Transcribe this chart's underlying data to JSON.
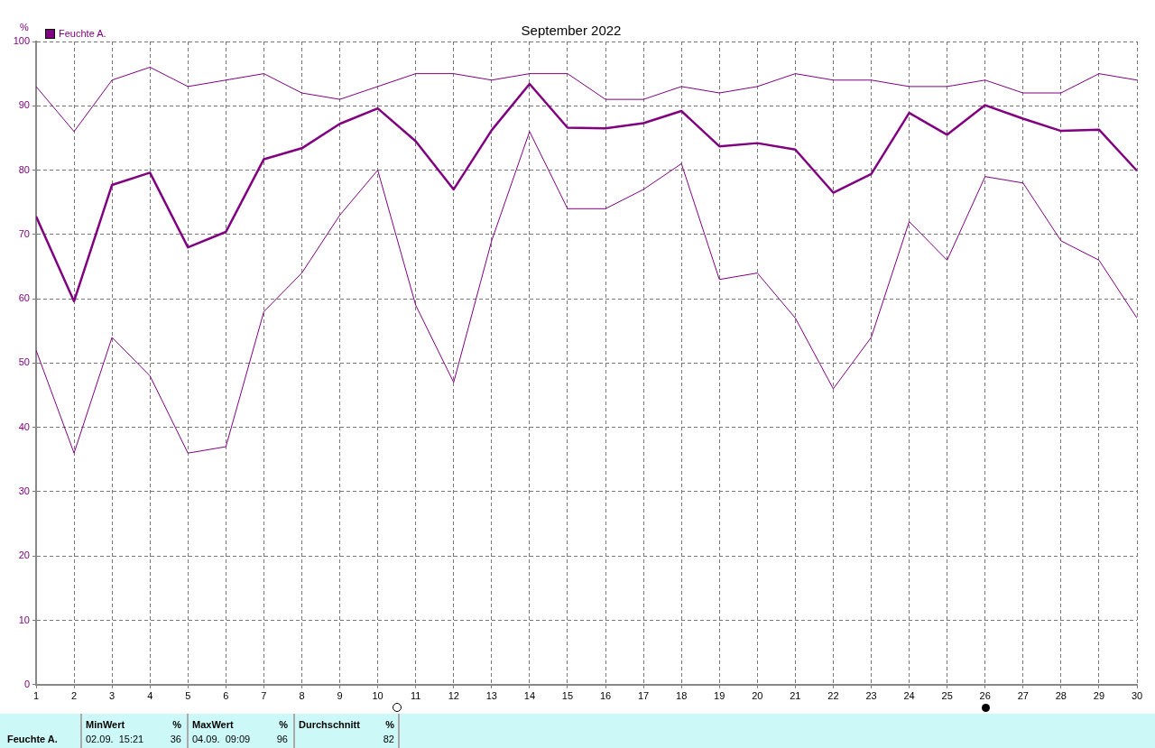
{
  "chart_data": {
    "type": "line",
    "title": "September 2022",
    "ylabel": "%",
    "x": [
      1,
      2,
      3,
      4,
      5,
      6,
      7,
      8,
      9,
      10,
      11,
      12,
      13,
      14,
      15,
      16,
      17,
      18,
      19,
      20,
      21,
      22,
      23,
      24,
      25,
      26,
      27,
      28,
      29,
      30
    ],
    "xlim": [
      1,
      30
    ],
    "xticks": [
      1,
      2,
      3,
      4,
      5,
      6,
      7,
      8,
      9,
      10,
      11,
      12,
      13,
      14,
      15,
      16,
      17,
      18,
      19,
      20,
      21,
      22,
      23,
      24,
      25,
      26,
      27,
      28,
      29,
      30
    ],
    "ylim": [
      0,
      100
    ],
    "yticks": [
      0,
      10,
      20,
      30,
      40,
      50,
      60,
      70,
      80,
      90,
      100
    ],
    "grid": true,
    "legend": "top left",
    "marker": "none",
    "line_style": "solid",
    "series": [
      {
        "color": "#800080",
        "values": [
          93,
          86,
          94,
          96,
          93,
          94,
          95,
          92,
          91,
          93,
          95,
          95,
          94,
          95,
          95,
          91,
          91,
          93,
          92,
          93,
          95,
          94,
          94,
          93,
          93,
          94,
          92,
          92,
          95,
          94
        ]
      },
      {
        "name": "Feuchte A.",
        "color": "#800080",
        "values": [
          72.8,
          59.6,
          77.7,
          79.6,
          68.0,
          70.4,
          81.7,
          83.4,
          87.2,
          89.6,
          84.5,
          77.0,
          86.2,
          93.4,
          86.6,
          86.5,
          87.3,
          89.2,
          83.7,
          84.2,
          83.2,
          76.5,
          79.4,
          88.9,
          85.5,
          90.1,
          88.0,
          86.1,
          86.3,
          79.9
        ]
      },
      {
        "color": "#800080",
        "values": [
          52,
          36,
          54,
          48,
          36,
          37,
          58,
          64,
          73,
          80,
          59,
          47,
          69,
          86,
          74,
          74,
          77,
          81,
          63,
          64,
          57,
          46,
          54,
          72,
          66,
          79,
          78,
          69,
          66,
          57
        ]
      }
    ],
    "annotations": [
      "Feuchte A.",
      "MinWert",
      "%",
      "02.09.  15:21",
      "36",
      "MaxWert",
      "%",
      "04.09.  09:09",
      "96",
      "Durchschnitt",
      "%",
      "82"
    ]
  }
}
